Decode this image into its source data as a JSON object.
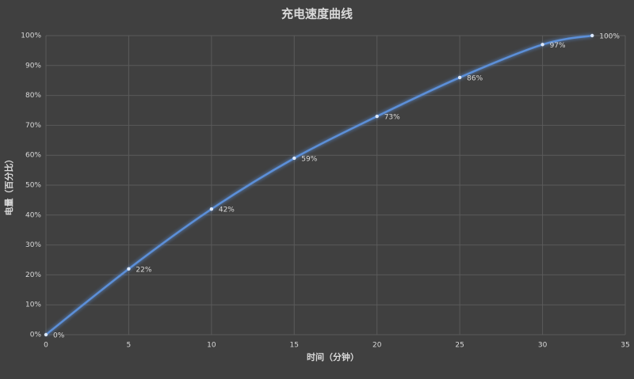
{
  "chart_data": {
    "type": "line",
    "title": "充电速度曲线",
    "x_label": "时间（分钟）",
    "y_label": "电量（百分比）",
    "x": [
      0,
      5,
      10,
      15,
      20,
      25,
      30,
      33
    ],
    "values": [
      0,
      22,
      42,
      59,
      73,
      86,
      97,
      100
    ],
    "value_labels": [
      "0%",
      "22%",
      "42%",
      "59%",
      "73%",
      "86%",
      "97%",
      "100%"
    ],
    "color": "#5b8fd8",
    "xlim": [
      0,
      35
    ],
    "xticks": [
      0,
      5,
      10,
      15,
      20,
      25,
      30,
      35
    ],
    "ylim": [
      0,
      100
    ],
    "yticks": [
      {
        "value": 0,
        "label": "0%"
      },
      {
        "value": 10,
        "label": "10%"
      },
      {
        "value": 20,
        "label": "20%"
      },
      {
        "value": 30,
        "label": "30%"
      },
      {
        "value": 40,
        "label": "40%"
      },
      {
        "value": 50,
        "label": "50%"
      },
      {
        "value": 60,
        "label": "60%"
      },
      {
        "value": 70,
        "label": "70%"
      },
      {
        "value": 80,
        "label": "80%"
      },
      {
        "value": 90,
        "label": "90%"
      },
      {
        "value": 100,
        "label": "100%"
      }
    ],
    "grid": true
  }
}
